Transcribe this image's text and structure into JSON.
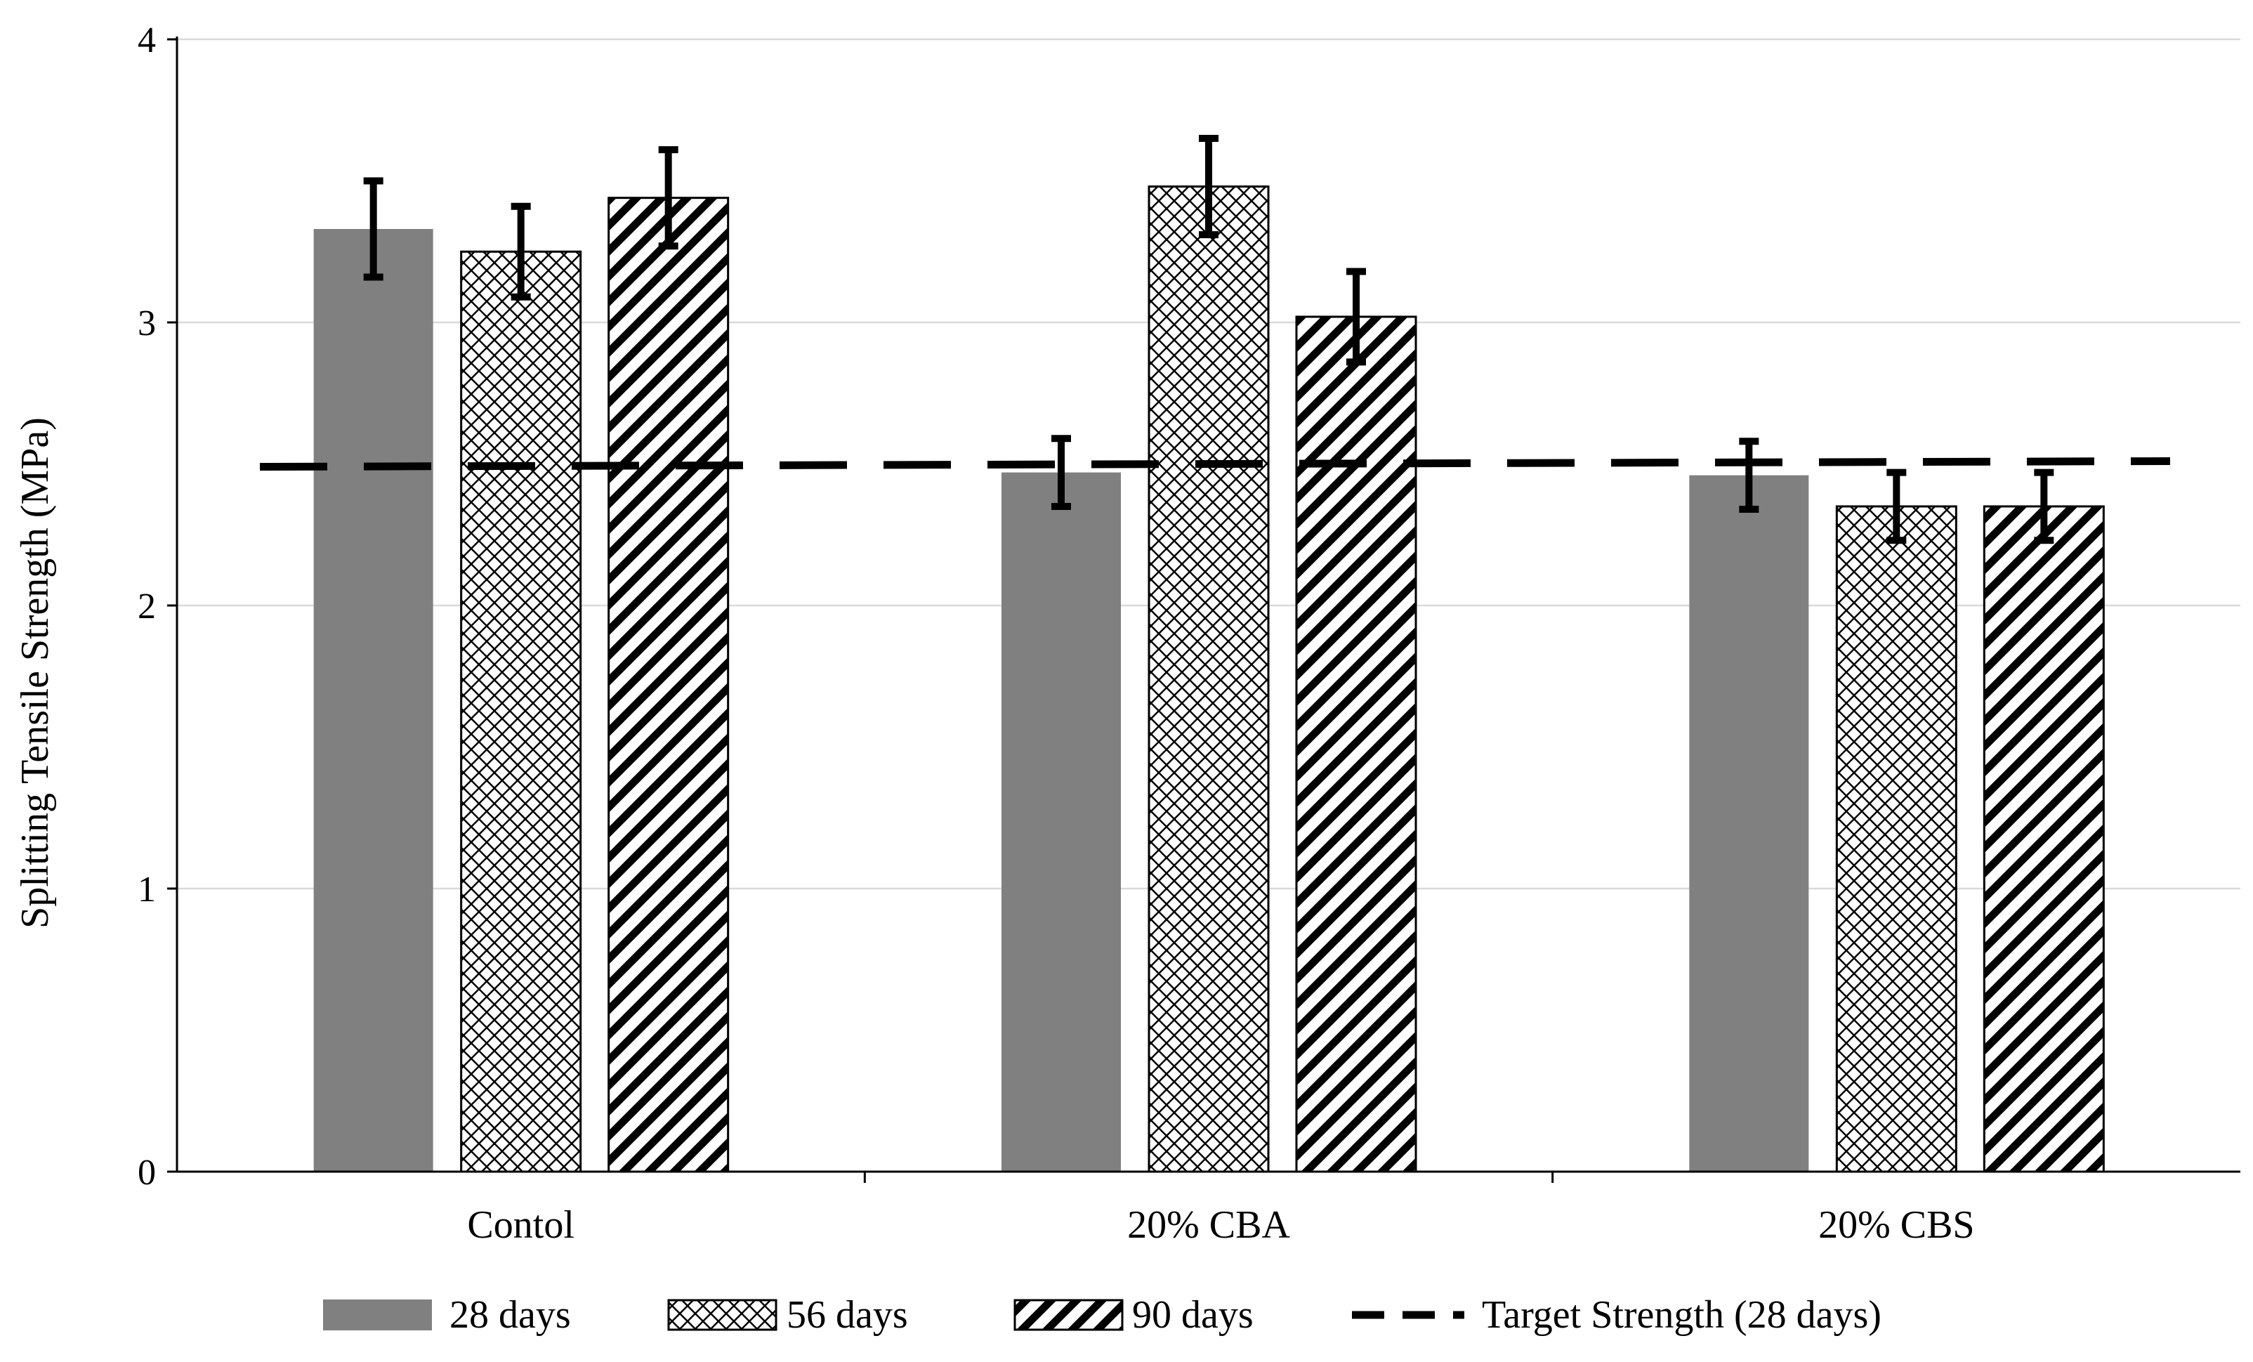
{
  "chart_data": {
    "type": "bar",
    "title": "",
    "xlabel": "",
    "ylabel": "Splitting Tensile Strength (MPa)",
    "ylim": [
      0,
      4
    ],
    "yticks": [
      "0",
      "1",
      "2",
      "3",
      "4"
    ],
    "grid": true,
    "legend_position": "bottom",
    "categories": [
      "Contol",
      "20% CBA",
      "20% CBS"
    ],
    "series": [
      {
        "name": "28 days",
        "pattern": "solid",
        "color": "#808080",
        "values": [
          3.33,
          2.47,
          2.46
        ],
        "errors": [
          0.17,
          0.12,
          0.12
        ]
      },
      {
        "name": "56 days",
        "pattern": "crosshatch",
        "color": "#000000",
        "values": [
          3.25,
          3.48,
          2.35
        ],
        "errors": [
          0.16,
          0.17,
          0.12
        ]
      },
      {
        "name": "90 days",
        "pattern": "diagonal",
        "color": "#000000",
        "values": [
          3.44,
          3.02,
          2.35
        ],
        "errors": [
          0.17,
          0.16,
          0.12
        ]
      }
    ],
    "target_line": {
      "name": "Target Strength (28 days)",
      "style": "dashed",
      "color": "#000000",
      "start": 2.49,
      "end": 2.51
    }
  }
}
